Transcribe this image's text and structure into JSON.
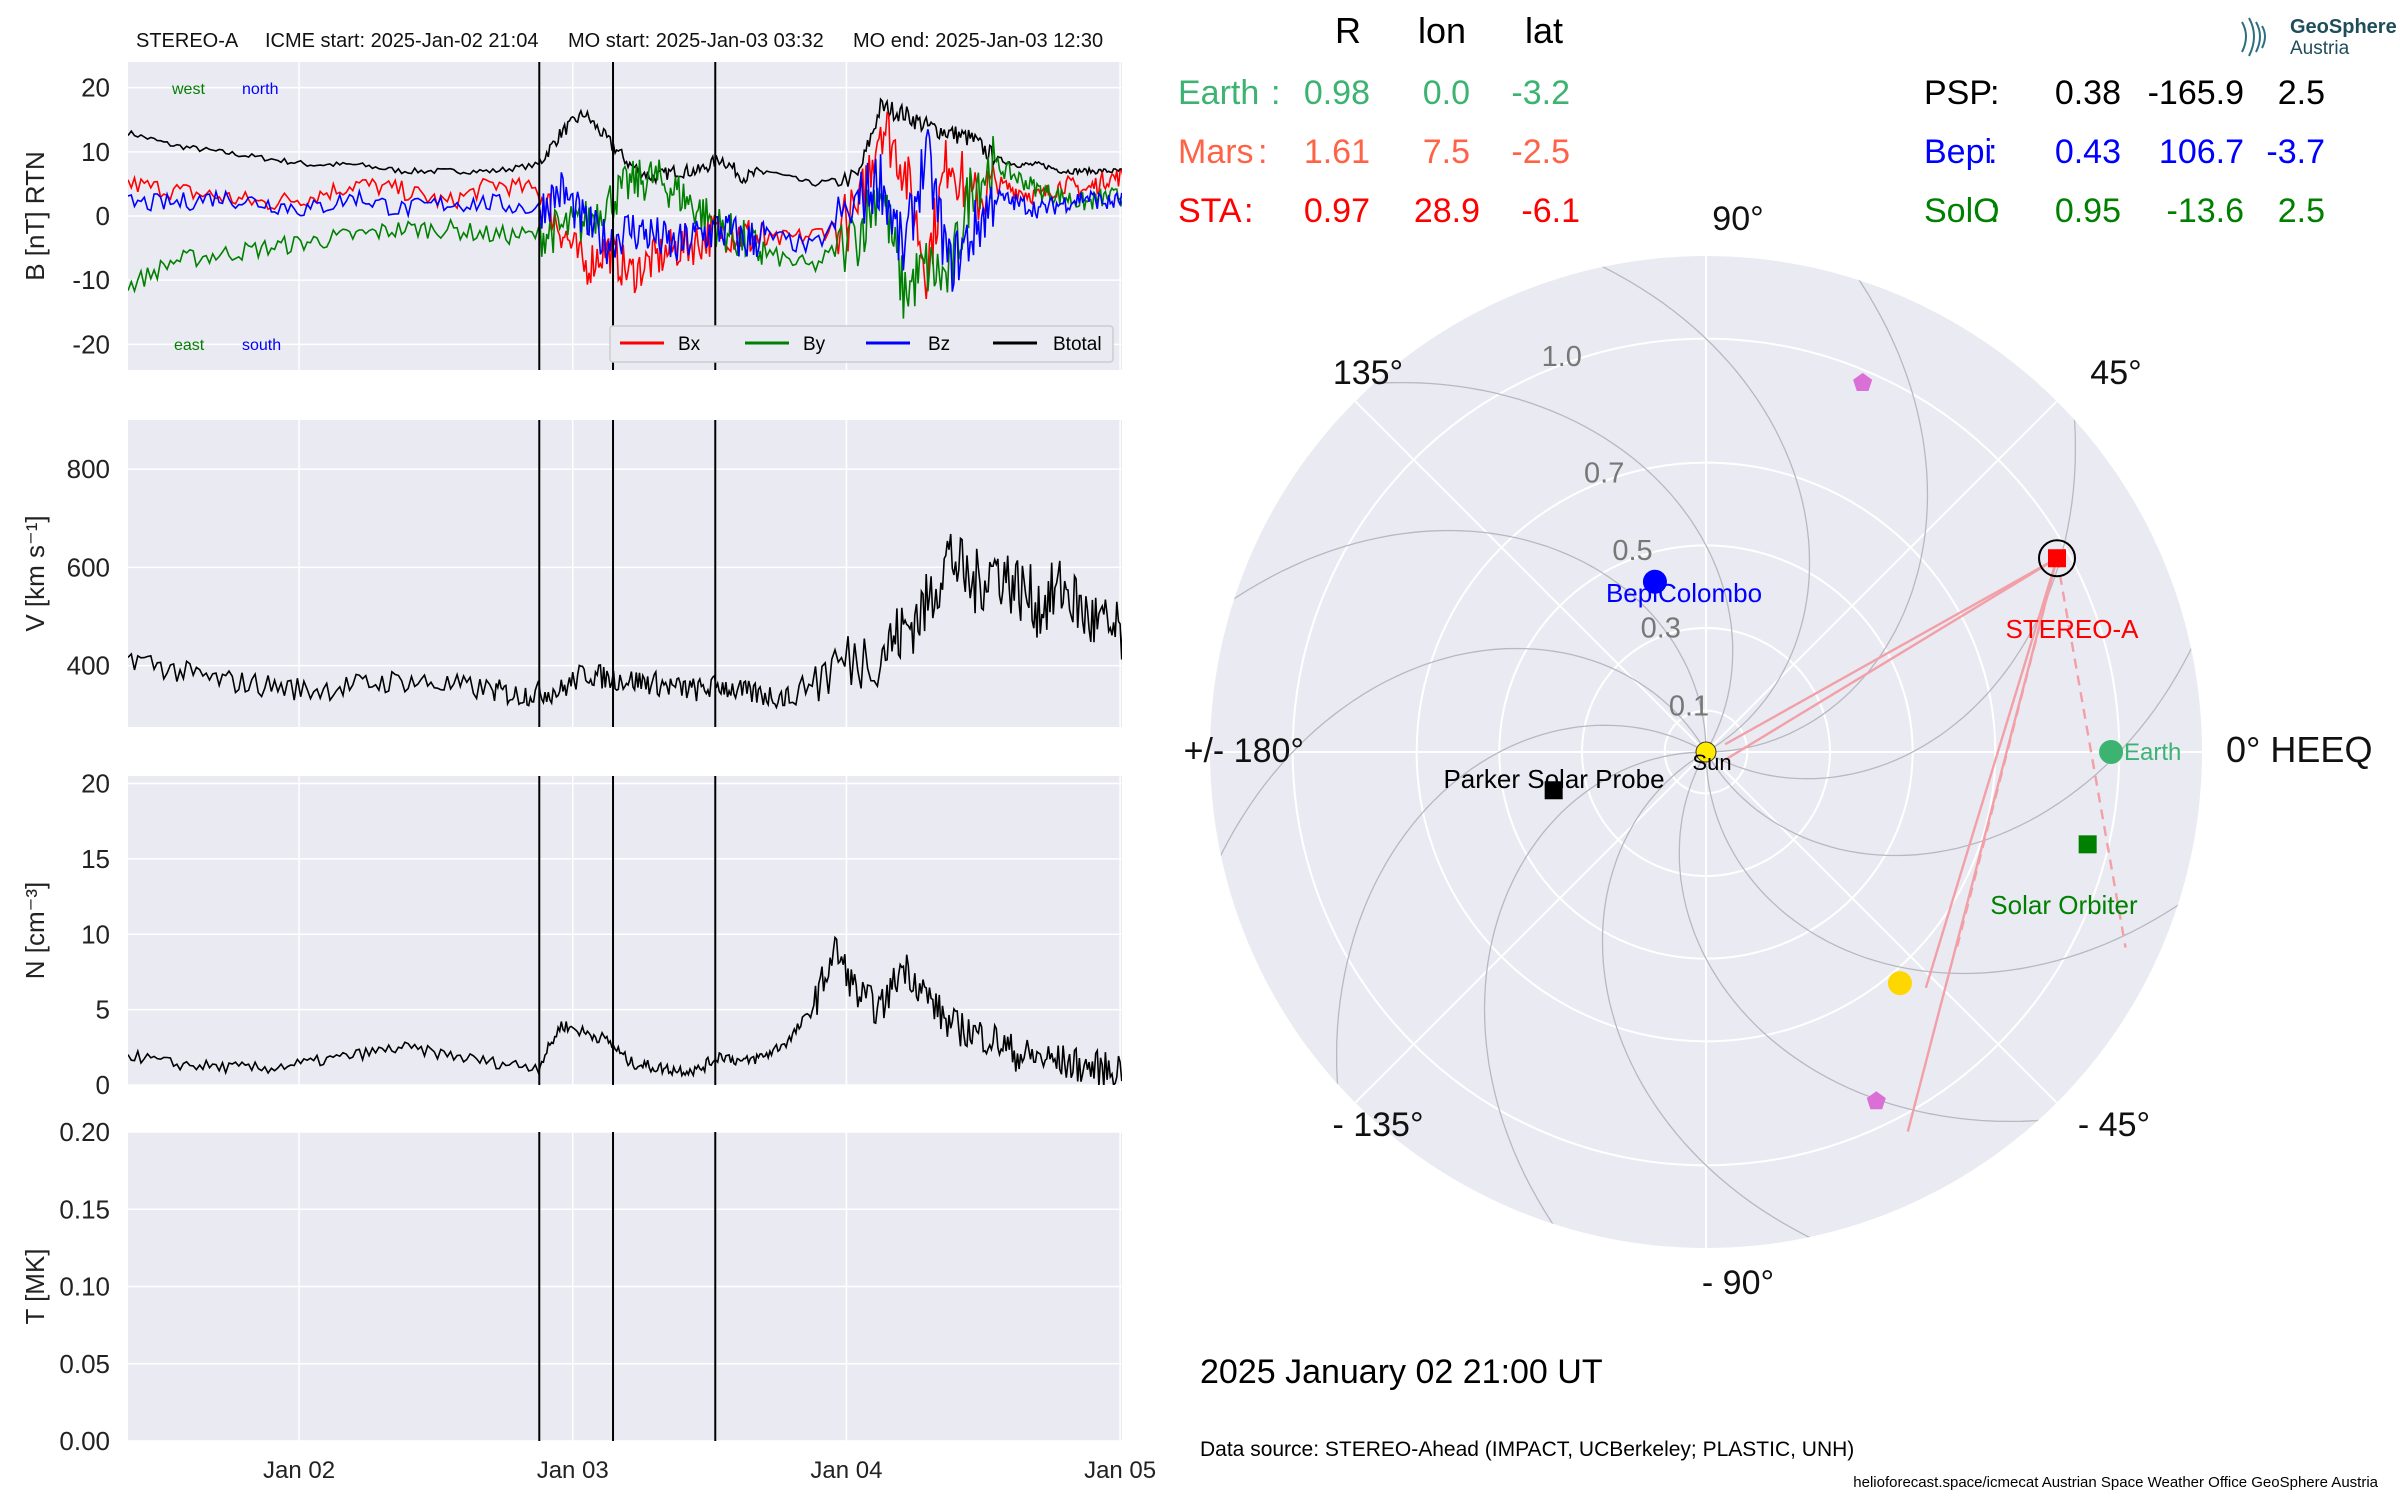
{
  "header": {
    "spacecraft": "STEREO-A",
    "icme_start": "ICME start: 2025-Jan-02 21:04",
    "mo_start": "MO start: 2025-Jan-03 03:32",
    "mo_end": "MO end: 2025-Jan-03 12:30"
  },
  "colors": {
    "bx": "#ff0000",
    "by": "#008000",
    "bz": "#0000ff",
    "btotal": "#000000",
    "earth": "#3cb371",
    "mars": "#ff6347",
    "sta": "#ff0000",
    "psp": "#000000",
    "bepi": "#0000ff",
    "solo": "#008000",
    "panel_bg": "#eaeaf2",
    "ellipse": "#da70d6",
    "apex": "#ffd700"
  },
  "chart_data": [
    {
      "type": "line",
      "id": "magnetic-field",
      "ylabel": "B [nT] RTN",
      "ylim": [
        -24,
        24
      ],
      "yticks": [
        -20,
        -10,
        0,
        10,
        20
      ],
      "xlim": [
        "2025-01-01 09:00",
        "2025-01-05 00:10"
      ],
      "xticks": [
        "Jan 02",
        "Jan 03",
        "Jan 04",
        "Jan 05"
      ],
      "annotations": {
        "left_top": "west",
        "right_top": "north",
        "left_bottom": "east",
        "right_bottom": "south"
      },
      "legend": {
        "placement": "lower-right",
        "entries": [
          "Bx",
          "By",
          "Bz",
          "Btotal"
        ]
      },
      "events": [
        "2025-01-02 21:04",
        "2025-01-03 03:32",
        "2025-01-03 12:30"
      ],
      "series": [
        {
          "name": "Btotal",
          "x_hours": [
            0,
            4,
            8,
            12,
            16,
            20,
            24,
            28,
            32,
            36,
            38,
            40,
            42,
            44,
            46,
            48,
            50,
            52,
            54,
            56,
            60,
            64,
            66,
            68,
            70,
            72,
            74,
            76,
            78,
            80,
            82,
            84,
            86,
            88
          ],
          "y": [
            13,
            11,
            10,
            9,
            8,
            8,
            7,
            7,
            7,
            8,
            13,
            16,
            12,
            8,
            6,
            7,
            7,
            9,
            6,
            7,
            5,
            6,
            17,
            16,
            14,
            13,
            12,
            9,
            8,
            8,
            7,
            7,
            7,
            7
          ]
        },
        {
          "name": "Bx",
          "x_hours": [
            0,
            4,
            8,
            12,
            16,
            20,
            24,
            28,
            32,
            36,
            38,
            40,
            42,
            44,
            46,
            48,
            50,
            52,
            54,
            56,
            60,
            64,
            66,
            68,
            70,
            72,
            74,
            76,
            78,
            80,
            82,
            84,
            86,
            88
          ],
          "y": [
            5,
            4,
            3,
            2,
            3,
            5,
            4,
            2,
            5,
            4,
            -2,
            -8,
            -5,
            -9,
            -7,
            -5,
            -4,
            -2,
            -3,
            -4,
            -3,
            0,
            15,
            8,
            -8,
            10,
            2,
            5,
            4,
            3,
            5,
            4,
            6,
            6
          ]
        },
        {
          "name": "By",
          "x_hours": [
            0,
            4,
            8,
            12,
            16,
            20,
            24,
            28,
            32,
            36,
            38,
            40,
            42,
            44,
            46,
            48,
            50,
            52,
            54,
            56,
            60,
            64,
            66,
            68,
            70,
            72,
            74,
            76,
            78,
            80,
            82,
            84,
            86,
            88
          ],
          "y": [
            -11,
            -7,
            -6,
            -5,
            -4,
            -3,
            -2,
            -2,
            -3,
            -3,
            -2,
            -1,
            2,
            5,
            6,
            4,
            1,
            -2,
            -4,
            -6,
            -8,
            -3,
            5,
            -12,
            -8,
            -10,
            5,
            8,
            6,
            4,
            3,
            2,
            3,
            3
          ]
        },
        {
          "name": "Bz",
          "x_hours": [
            0,
            4,
            8,
            12,
            16,
            20,
            24,
            28,
            32,
            36,
            38,
            40,
            42,
            44,
            46,
            48,
            50,
            52,
            54,
            56,
            60,
            64,
            66,
            68,
            70,
            72,
            74,
            76,
            78,
            80,
            82,
            84,
            86,
            88
          ],
          "y": [
            2,
            2,
            3,
            2,
            1,
            3,
            1,
            2,
            2,
            1,
            4,
            -1,
            -4,
            -2,
            -3,
            -5,
            -3,
            -2,
            -4,
            -3,
            -5,
            2,
            6,
            -6,
            10,
            -8,
            -3,
            3,
            2,
            1,
            2,
            3,
            2,
            3
          ]
        }
      ]
    },
    {
      "type": "line",
      "id": "speed",
      "ylabel": "V [km s⁻¹]",
      "ylim": [
        275,
        900
      ],
      "yticks": [
        400,
        600,
        800
      ],
      "series": [
        {
          "name": "V",
          "x_hours": [
            0,
            4,
            8,
            12,
            16,
            20,
            24,
            28,
            32,
            34,
            36,
            38,
            40,
            42,
            44,
            46,
            48,
            50,
            52,
            54,
            56,
            58,
            62,
            66,
            68,
            70,
            72,
            74,
            76,
            78,
            80,
            82,
            84,
            86,
            88
          ],
          "y": [
            420,
            390,
            370,
            360,
            350,
            360,
            370,
            360,
            350,
            340,
            345,
            350,
            385,
            375,
            370,
            365,
            355,
            350,
            360,
            345,
            340,
            335,
            400,
            430,
            470,
            520,
            630,
            560,
            600,
            560,
            520,
            560,
            500,
            470,
            450
          ]
        }
      ]
    },
    {
      "type": "line",
      "id": "density",
      "ylabel": "N [cm⁻³]",
      "ylim": [
        0,
        20.5
      ],
      "yticks": [
        0,
        5,
        10,
        15,
        20
      ],
      "series": [
        {
          "name": "N",
          "x_hours": [
            0,
            4,
            8,
            12,
            16,
            20,
            24,
            28,
            32,
            36,
            38,
            40,
            42,
            44,
            46,
            48,
            50,
            52,
            54,
            56,
            58,
            60,
            62,
            64,
            66,
            68,
            70,
            72,
            74,
            76,
            78,
            80,
            82,
            84,
            86,
            88
          ],
          "y": [
            2,
            1.4,
            1.2,
            1.1,
            1.5,
            2,
            2.5,
            2,
            1.5,
            1.2,
            4,
            3.5,
            3,
            1.5,
            1.2,
            1,
            1,
            2,
            1.5,
            2,
            3,
            5,
            9,
            6,
            5,
            8,
            6,
            4,
            3.5,
            3,
            2,
            1.8,
            1.5,
            1.2,
            1,
            1.2
          ]
        }
      ]
    },
    {
      "type": "line",
      "id": "temperature",
      "ylabel": "T [MK]",
      "ylim": [
        0,
        0.2
      ],
      "yticks": [
        "0.00",
        "0.05",
        "0.10",
        "0.15",
        "0.20"
      ],
      "series": []
    },
    {
      "type": "scatter",
      "id": "heeq-polar",
      "angle_labels": {
        "0": "0° HEEQ",
        "45": "45°",
        "90": "90°",
        "135": "135°",
        "180": "+/- 180°",
        "-135": "- 135°",
        "-90": "- 90°",
        "-45": "- 45°"
      },
      "radial_ticks": [
        "0.1",
        "0.3",
        "0.5",
        "0.7",
        "1.0"
      ],
      "rmax": 1.2,
      "table_header": [
        "R",
        "lon",
        "lat"
      ],
      "positions": [
        {
          "name": "Earth",
          "r": "0.98",
          "lon": "0.0",
          "lat": "-3.2"
        },
        {
          "name": "Mars",
          "r": "1.61",
          "lon": "7.5",
          "lat": "-2.5"
        },
        {
          "name": "STA",
          "r": "0.97",
          "lon": "28.9",
          "lat": "-6.1"
        },
        {
          "name": "PSP",
          "r": "0.38",
          "lon": "-165.9",
          "lat": "2.5"
        },
        {
          "name": "Bepi",
          "r": "0.43",
          "lon": "106.7",
          "lat": "-3.7"
        },
        {
          "name": "SolO",
          "r": "0.95",
          "lon": "-13.6",
          "lat": "2.5"
        }
      ],
      "markers": [
        {
          "label": "Sun",
          "r": 0,
          "lon": 0
        },
        {
          "label": "Earth",
          "r": 0.98,
          "lon": 0.0
        },
        {
          "label": "STEREO-A",
          "r": 0.97,
          "lon": 28.9
        },
        {
          "label": "BepiColombo",
          "r": 0.43,
          "lon": 106.7
        },
        {
          "label": "Parker Solar Probe",
          "r": 0.38,
          "lon": -165.9
        },
        {
          "label": "Solar Orbiter",
          "r": 0.95,
          "lon": -13.6
        }
      ],
      "extra_marks": [
        {
          "shape": "pentagon",
          "r": 0.97,
          "lon": 67
        },
        {
          "shape": "pentagon",
          "r": 0.94,
          "lon": -64
        },
        {
          "shape": "circle",
          "r": 0.73,
          "lon": -50
        }
      ]
    }
  ],
  "footer": {
    "timestamp": "2025 January 02  21:00 UT",
    "data_source": "Data source: STEREO-Ahead (IMPACT, UCBerkeley; PLASTIC, UNH)",
    "credits": "helioforecast.space/icmecat   Austrian Space Weather Office   GeoSphere Austria"
  },
  "logo": {
    "line1": "GeoSphere",
    "line2": "Austria"
  }
}
